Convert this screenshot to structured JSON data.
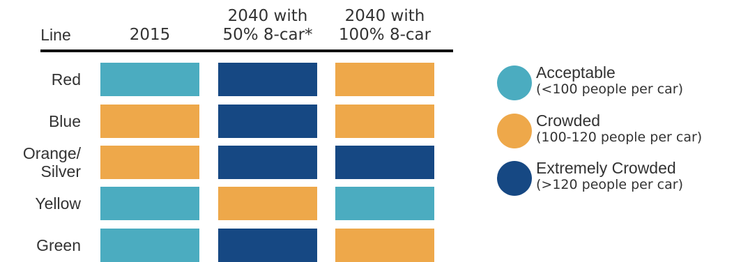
{
  "chart_data": {
    "type": "table",
    "row_header": "Line",
    "columns": [
      "2015",
      "2040 with 50% 8-car*",
      "2040 with 100% 8-car"
    ],
    "column_lines": [
      [
        "2015"
      ],
      [
        "2040 with",
        "50% 8-car*"
      ],
      [
        "2040 with",
        "100% 8-car"
      ]
    ],
    "rows": [
      {
        "line": [
          "Red"
        ],
        "values": [
          "Acceptable",
          "Extremely Crowded",
          "Crowded"
        ]
      },
      {
        "line": [
          "Blue"
        ],
        "values": [
          "Crowded",
          "Extremely Crowded",
          "Crowded"
        ]
      },
      {
        "line": [
          "Orange/",
          "Silver"
        ],
        "values": [
          "Crowded",
          "Extremely Crowded",
          "Extremely Crowded"
        ]
      },
      {
        "line": [
          "Yellow"
        ],
        "values": [
          "Acceptable",
          "Crowded",
          "Acceptable"
        ]
      },
      {
        "line": [
          "Green"
        ],
        "values": [
          "Acceptable",
          "Extremely Crowded",
          "Crowded"
        ]
      }
    ],
    "legend": [
      {
        "category": "Acceptable",
        "description": "(<100 people per car)",
        "color": "#4bacc0"
      },
      {
        "category": "Crowded",
        "description": "(100-120 people per car)",
        "color": "#eea84a"
      },
      {
        "category": "Extremely Crowded",
        "description": "(>120 people per car)",
        "color": "#164883"
      }
    ],
    "legend_position": "right"
  }
}
